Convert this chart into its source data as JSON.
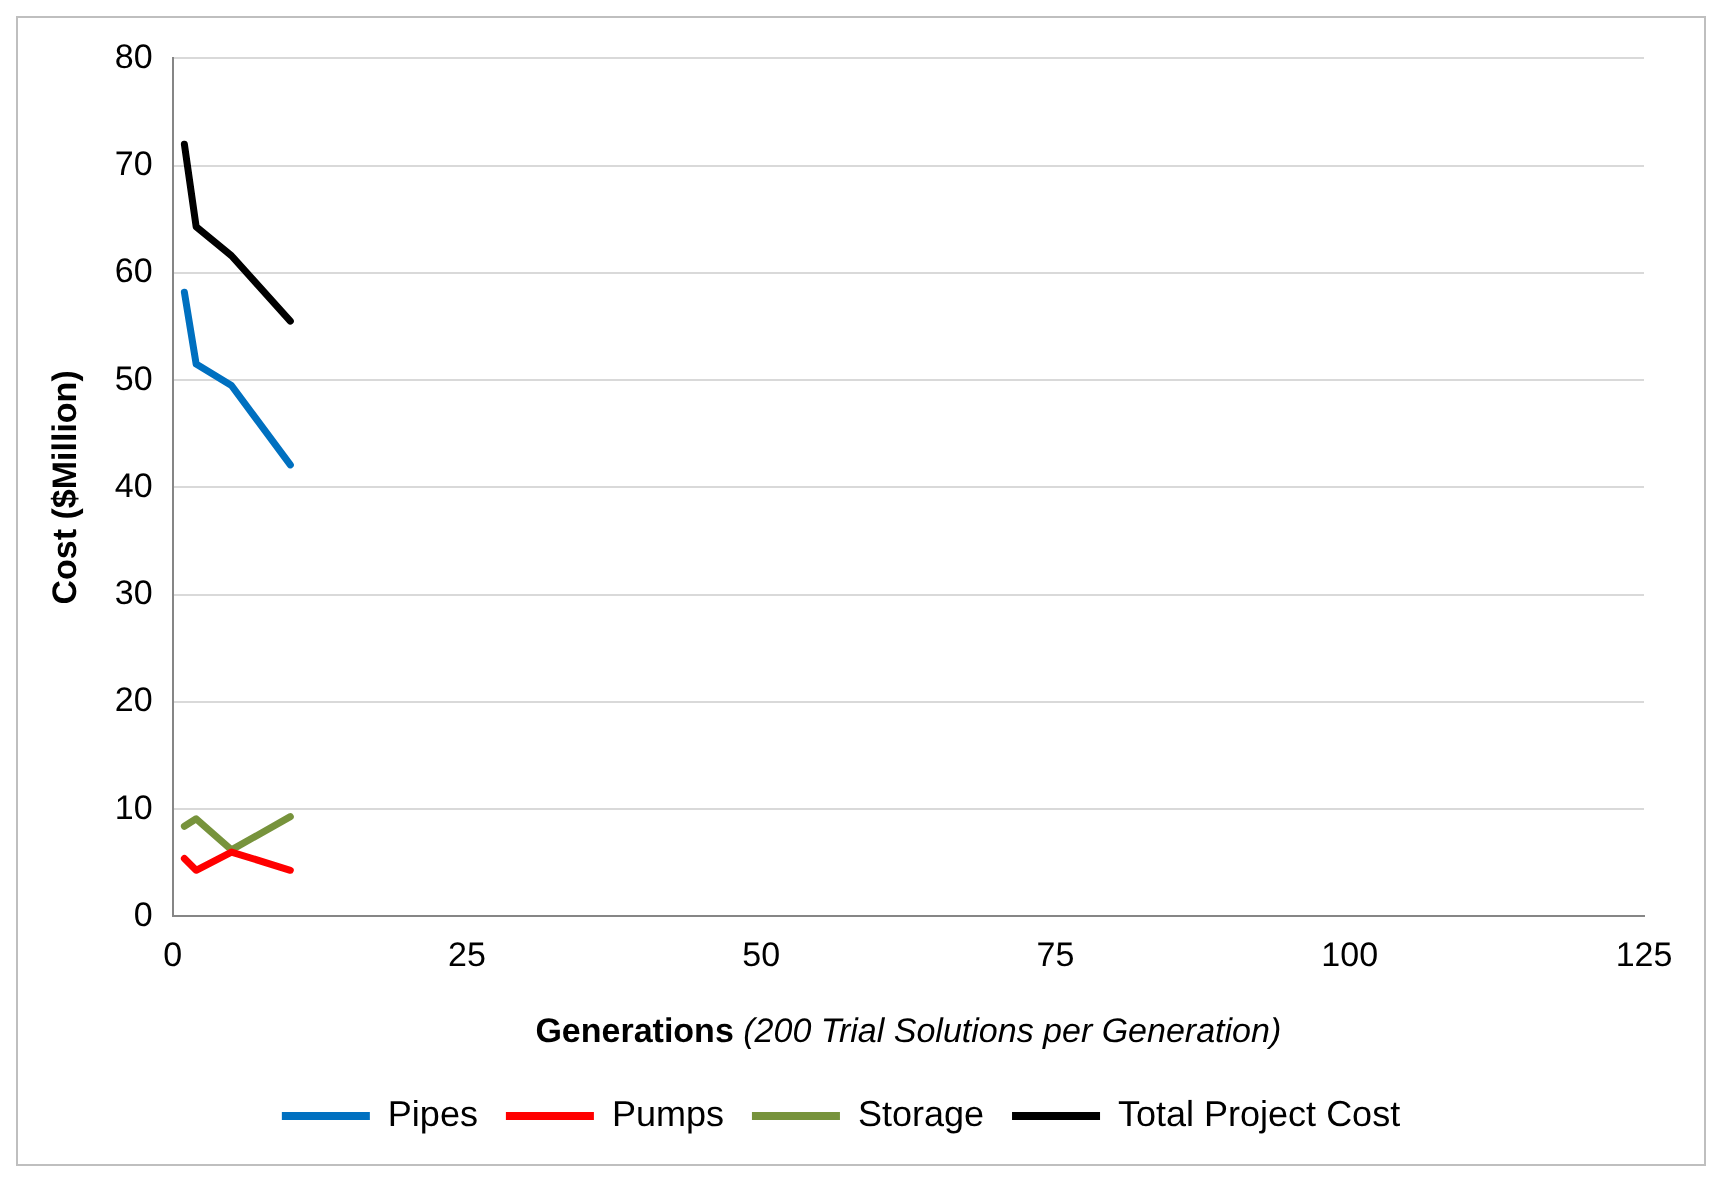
{
  "chart_data": {
    "type": "line",
    "xlabel": "Generations (200 Trial Solutions per Generation)",
    "ylabel": "Cost ($Million)",
    "x": [
      1,
      2,
      5,
      10
    ],
    "series": [
      {
        "name": "Pipes",
        "color": "#0070c0",
        "values": [
          58.2,
          51.5,
          49.5,
          42.1
        ]
      },
      {
        "name": "Pumps",
        "color": "#ff0000",
        "values": [
          5.4,
          4.3,
          6.0,
          4.3
        ]
      },
      {
        "name": "Storage",
        "color": "#77933c",
        "values": [
          8.4,
          9.1,
          6.2,
          9.3
        ]
      },
      {
        "name": "Total Project Cost",
        "color": "#000000",
        "values": [
          72,
          64.3,
          61.6,
          55.5
        ]
      }
    ],
    "xlim": [
      0,
      125
    ],
    "xticks": [
      0,
      25,
      50,
      75,
      100,
      125
    ],
    "ylim": [
      0,
      80
    ],
    "yticks": [
      0,
      10,
      20,
      30,
      40,
      50,
      60,
      70,
      80
    ],
    "grid": "y",
    "legend": "bottom",
    "marker": "none",
    "line_style": "solid"
  }
}
